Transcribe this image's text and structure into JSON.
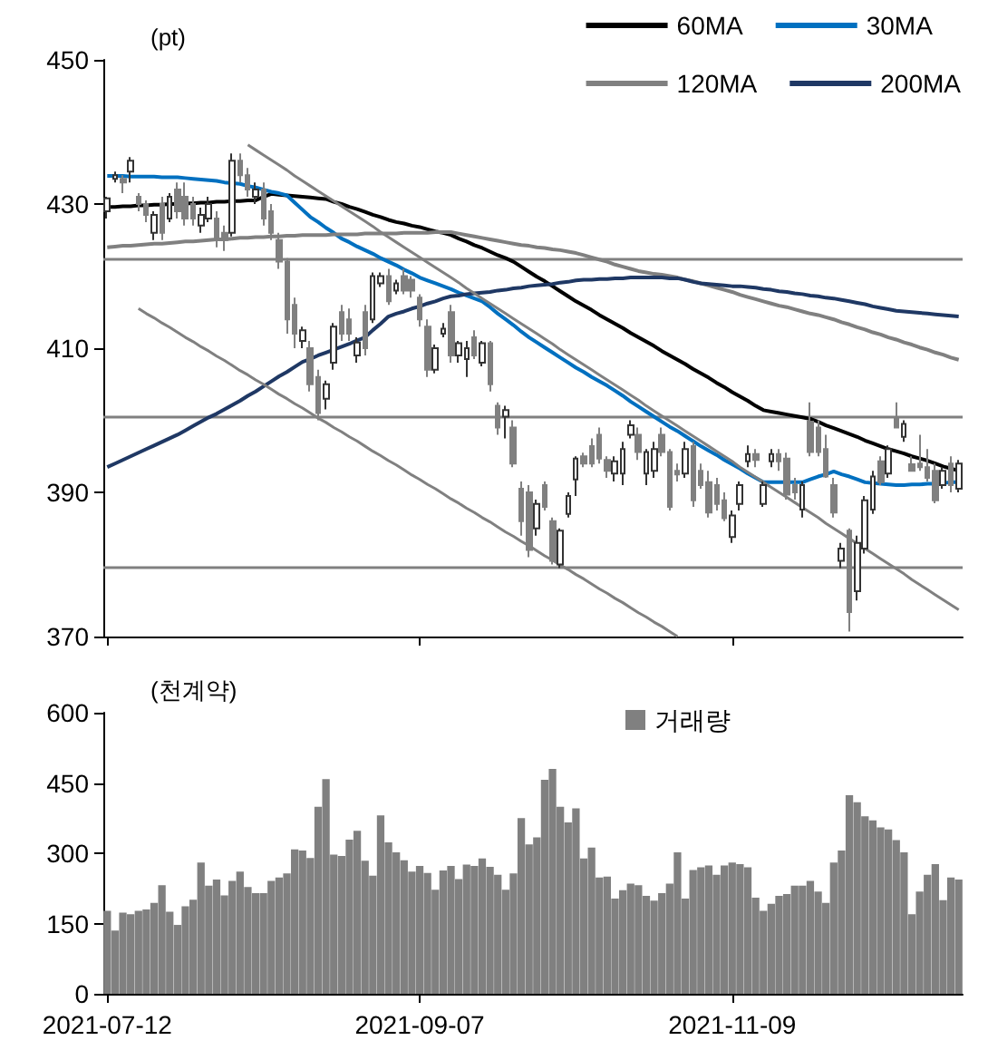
{
  "chart_data": [
    {
      "type": "candlestick",
      "ylabel": "(pt)",
      "legend": "top right",
      "tick_labels": "y",
      "colors": [
        "#ffffff",
        "#ffffff",
        "#808080",
        "#ffffff",
        "#808080",
        "#808080",
        "#ffffff",
        "#808080",
        "#ffffff",
        "#808080",
        "#808080",
        "#808080",
        "#ffffff",
        "#ffffff",
        "#808080",
        "#808080",
        "#ffffff",
        "#808080",
        "#808080",
        "#ffffff",
        "#808080",
        "#808080",
        "#808080",
        "#808080",
        "#808080",
        "#ffffff",
        "#808080",
        "#808080",
        "#ffffff",
        "#ffffff",
        "#808080",
        "#808080",
        "#ffffff",
        "#808080",
        "#ffffff",
        "#ffffff",
        "#808080",
        "#ffffff",
        "#808080",
        "#808080",
        "#808080",
        "#808080",
        "#ffffff",
        "#ffffff",
        "#808080",
        "#ffffff",
        "#ffffff",
        "#808080",
        "#ffffff",
        "#808080",
        "#808080",
        "#ffffff",
        "#808080",
        "#808080",
        "#808080",
        "#ffffff",
        "#808080",
        "#808080",
        "#ffffff",
        "#ffffff",
        "#ffffff",
        "#808080",
        "#808080",
        "#808080",
        "#808080",
        "#ffffff",
        "#ffffff",
        "#ffffff",
        "#808080",
        "#ffffff",
        "#ffffff",
        "#808080",
        "#808080",
        "#808080",
        "#ffffff",
        "#808080",
        "#808080",
        "#808080",
        "#808080",
        "#808080",
        "#ffffff",
        "#ffffff",
        "#ffffff",
        "#808080",
        "#ffffff",
        "#ffffff",
        "#808080",
        "#808080",
        "#808080",
        "#ffffff",
        "#808080",
        "#808080",
        "#808080",
        "#808080",
        "#ffffff",
        "#808080",
        "#ffffff",
        "#ffffff",
        "#ffffff",
        "#808080",
        "#ffffff",
        "#808080",
        "#ffffff",
        "#808080",
        "#808080",
        "#808080",
        "#808080",
        "#ffffff",
        "#808080",
        "#ffffff"
      ],
      "categories": [
        "2021-07-12",
        null,
        null,
        null,
        null,
        null,
        null,
        null,
        null,
        null,
        null,
        null,
        null,
        null,
        null,
        null,
        null,
        null,
        null,
        null,
        null,
        null,
        null,
        null,
        null,
        null,
        null,
        null,
        null,
        null,
        null,
        null,
        null,
        null,
        null,
        null,
        null,
        null,
        null,
        null,
        "2021-09-07",
        null,
        null,
        null,
        null,
        null,
        null,
        null,
        null,
        null,
        null,
        null,
        null,
        null,
        null,
        null,
        null,
        null,
        null,
        null,
        null,
        null,
        null,
        null,
        null,
        null,
        null,
        null,
        null,
        null,
        null,
        null,
        null,
        null,
        null,
        null,
        null,
        null,
        null,
        null,
        "2021-11-09",
        null,
        null,
        null,
        null,
        null,
        null,
        null,
        null,
        null,
        null,
        null,
        null,
        null,
        null,
        null,
        null,
        null,
        null,
        null,
        null,
        null,
        null,
        null,
        null,
        null,
        null,
        null,
        null,
        null
      ],
      "ylim": [
        370,
        450
      ],
      "yticks": [
        370,
        390,
        410,
        430,
        450
      ],
      "ohlc": [
        [
          429,
          431,
          428,
          430.8
        ],
        [
          433.5,
          434.5,
          433,
          434
        ],
        [
          433.5,
          434,
          431.5,
          433
        ],
        [
          434.5,
          436.5,
          433,
          436
        ],
        [
          431,
          431.5,
          429,
          430
        ],
        [
          430,
          430.5,
          427.5,
          428.5
        ],
        [
          426,
          429,
          425,
          428.5
        ],
        [
          430,
          431,
          425,
          426
        ],
        [
          428,
          431.5,
          427.5,
          431
        ],
        [
          432,
          433,
          428,
          429
        ],
        [
          431,
          433,
          427,
          428
        ],
        [
          430,
          431,
          427,
          428
        ],
        [
          427,
          429.5,
          426,
          428.5
        ],
        [
          428,
          431,
          427.5,
          430
        ],
        [
          428,
          429,
          424,
          425
        ],
        [
          426,
          427,
          423.5,
          425
        ],
        [
          426,
          437,
          425.5,
          436
        ],
        [
          436,
          437,
          433,
          434
        ],
        [
          434,
          435,
          431,
          432
        ],
        [
          431,
          433,
          430,
          432
        ],
        [
          432,
          433,
          427,
          428
        ],
        [
          429,
          430,
          425,
          426
        ],
        [
          425,
          426,
          421,
          422
        ],
        [
          422,
          422.5,
          412,
          414
        ],
        [
          416,
          417,
          410,
          412
        ],
        [
          411,
          413,
          410,
          412.5
        ],
        [
          410,
          411,
          404,
          405
        ],
        [
          406,
          407,
          400,
          401
        ],
        [
          403,
          405.5,
          401.5,
          405
        ],
        [
          408,
          413.5,
          407,
          413
        ],
        [
          415,
          416,
          411,
          412
        ],
        [
          414,
          415.5,
          411,
          412
        ],
        [
          409,
          411.5,
          408,
          410.8
        ],
        [
          415,
          416,
          409,
          410
        ],
        [
          414,
          420.5,
          413.5,
          420
        ],
        [
          419,
          420.5,
          418.5,
          420
        ],
        [
          420,
          421,
          416,
          416.5
        ],
        [
          418,
          419.5,
          417.5,
          419
        ],
        [
          420,
          421,
          417.5,
          418
        ],
        [
          419.5,
          420,
          417,
          418
        ],
        [
          417,
          417.5,
          413,
          414
        ],
        [
          413,
          414,
          406,
          407
        ],
        [
          407,
          410.5,
          406.5,
          410
        ],
        [
          412,
          413.5,
          411.5,
          412.7
        ],
        [
          415,
          416,
          408,
          409
        ],
        [
          409,
          411,
          408,
          410.7
        ],
        [
          408.5,
          411,
          406,
          410
        ],
        [
          411.5,
          412.5,
          408.5,
          409
        ],
        [
          408,
          411,
          407.5,
          410.7
        ],
        [
          410.7,
          411,
          404,
          405
        ],
        [
          402,
          402.5,
          398,
          399
        ],
        [
          400.5,
          402,
          397.5,
          401.4
        ],
        [
          399,
          400,
          393.5,
          394
        ],
        [
          390.5,
          391.5,
          384,
          386
        ],
        [
          390,
          391,
          381,
          382
        ],
        [
          385,
          389,
          384,
          388.4
        ],
        [
          391,
          391.5,
          387.5,
          388
        ],
        [
          386,
          386.5,
          380,
          380.5
        ],
        [
          380,
          385,
          379.5,
          384.7
        ],
        [
          387,
          390,
          386.5,
          389.5
        ],
        [
          391.8,
          395,
          389.5,
          394.7
        ],
        [
          395,
          395.5,
          393.5,
          394
        ],
        [
          396.4,
          397.5,
          393.5,
          394
        ],
        [
          398,
          399,
          394,
          394.7
        ],
        [
          394.5,
          395,
          392,
          393
        ],
        [
          392.6,
          395,
          391.5,
          394.3
        ],
        [
          392.6,
          397,
          391,
          396
        ],
        [
          398,
          400,
          397.5,
          399.3
        ],
        [
          398,
          399,
          394.5,
          395.6
        ],
        [
          392.6,
          396,
          391,
          395.6
        ],
        [
          393,
          397,
          392,
          396
        ],
        [
          398,
          399,
          395,
          395.6
        ],
        [
          395.6,
          396,
          387.5,
          388
        ],
        [
          393,
          394,
          391.5,
          392.5
        ],
        [
          392.6,
          397,
          392,
          396
        ],
        [
          396.4,
          397,
          388,
          388.9
        ],
        [
          393,
          394,
          390.5,
          391
        ],
        [
          391.4,
          393,
          386.5,
          387.2
        ],
        [
          391,
          392,
          387.5,
          388.4
        ],
        [
          388.9,
          390,
          386,
          386.4
        ],
        [
          383.8,
          387.5,
          383,
          386.8
        ],
        [
          388.4,
          391.5,
          387.5,
          391
        ],
        [
          394.3,
          396.5,
          393.5,
          395.3
        ],
        [
          395.3,
          396,
          393.5,
          394.5
        ],
        [
          388.4,
          391.5,
          388,
          391
        ],
        [
          394.3,
          396,
          393.5,
          395.3
        ],
        [
          395.3,
          396,
          393,
          394.3
        ],
        [
          394.7,
          395.5,
          389,
          389.7
        ],
        [
          391,
          392,
          389,
          390
        ],
        [
          387.6,
          391.5,
          386.5,
          391
        ],
        [
          399.8,
          402.5,
          395,
          395.6
        ],
        [
          399,
          400,
          395,
          395.6
        ],
        [
          396,
          398,
          392,
          392.2
        ],
        [
          391,
          392,
          386.5,
          387.2
        ],
        [
          380.5,
          383,
          379.5,
          382.2
        ],
        [
          384.7,
          385,
          370.7,
          373.4
        ],
        [
          376.3,
          384,
          375,
          383
        ],
        [
          382.2,
          389.5,
          381.5,
          388.9
        ],
        [
          387.6,
          393,
          387,
          392.2
        ],
        [
          394.3,
          395,
          391,
          391.4
        ],
        [
          392.6,
          396.5,
          392,
          396
        ],
        [
          400.2,
          402.5,
          399,
          399
        ],
        [
          397.7,
          400,
          397,
          399.5
        ],
        [
          393.9,
          395,
          393,
          393
        ],
        [
          394,
          398,
          393,
          393.5
        ],
        [
          393.5,
          396,
          391.5,
          392
        ],
        [
          393,
          394,
          388.5,
          388.9
        ],
        [
          391,
          393.5,
          390.5,
          393
        ],
        [
          394,
          395,
          390,
          391
        ],
        [
          390.5,
          394.5,
          390,
          394
        ]
      ],
      "series": [
        {
          "name": "60MA",
          "type": "line",
          "color": "#000000",
          "values": [
            429.6,
            429.6,
            429.7,
            429.7,
            429.8,
            429.8,
            429.9,
            429.9,
            430.0,
            430.0,
            430.1,
            430.1,
            430.2,
            430.2,
            430.3,
            430.3,
            430.4,
            430.4,
            430.5,
            430.5,
            431.0,
            431.4,
            431.3,
            431.2,
            431.1,
            431.0,
            430.9,
            430.8,
            430.7,
            430.3,
            430.0,
            429.6,
            429.3,
            428.9,
            428.5,
            428.2,
            427.8,
            427.5,
            427.3,
            427.0,
            426.8,
            426.5,
            426.2,
            426.0,
            425.7,
            425.2,
            424.8,
            424.3,
            423.9,
            423.4,
            422.9,
            422.5,
            422.0,
            421.3,
            420.6,
            419.9,
            419.3,
            418.6,
            417.9,
            417.2,
            416.5,
            415.9,
            415.3,
            414.6,
            414.0,
            413.4,
            412.8,
            412.1,
            411.5,
            410.9,
            410.3,
            409.6,
            409.0,
            408.4,
            407.8,
            407.1,
            406.5,
            405.9,
            405.2,
            404.6,
            403.9,
            403.3,
            402.7,
            402.0,
            401.4,
            401.2,
            401.0,
            400.8,
            400.6,
            400.4,
            400.2,
            399.8,
            399.3,
            398.9,
            398.5,
            398.1,
            397.7,
            397.2,
            396.8,
            396.4,
            396.0,
            395.7,
            395.4,
            395.0,
            394.7,
            394.4,
            394.0,
            393.6,
            393.3,
            393.0
          ]
        },
        {
          "name": "30MA",
          "type": "line",
          "color": "#0070c0",
          "values": [
            433.9,
            433.9,
            433.9,
            433.8,
            433.8,
            433.8,
            433.8,
            433.7,
            433.7,
            433.7,
            433.6,
            433.5,
            433.4,
            433.3,
            433.2,
            433.0,
            432.9,
            432.8,
            432.5,
            432.3,
            432.0,
            431.7,
            431.5,
            431.2,
            430.2,
            429.2,
            428.2,
            427.5,
            426.7,
            426.0,
            425.2,
            424.7,
            424.1,
            423.6,
            423.1,
            422.5,
            422.0,
            421.5,
            420.9,
            420.4,
            419.8,
            419.4,
            419.0,
            418.6,
            418.2,
            417.7,
            417.3,
            416.9,
            416.5,
            415.7,
            414.8,
            414.0,
            413.2,
            412.3,
            411.5,
            410.8,
            410.1,
            409.4,
            408.7,
            408.0,
            407.3,
            406.7,
            406.0,
            405.4,
            404.8,
            404.1,
            403.4,
            402.6,
            401.9,
            401.2,
            400.5,
            399.8,
            399.1,
            398.5,
            397.8,
            397.1,
            396.4,
            395.8,
            395.2,
            394.5,
            393.9,
            393.3,
            392.6,
            392.0,
            391.4,
            391.4,
            391.4,
            391.4,
            391.4,
            391.4,
            391.8,
            392.2,
            392.5,
            392.9,
            392.5,
            392.2,
            391.8,
            391.4,
            391.3,
            391.2,
            391.1,
            391.0,
            391.0,
            391.1,
            391.1,
            391.2,
            391.2,
            391.3,
            391.4,
            391.4
          ]
        },
        {
          "name": "120MA",
          "type": "line",
          "color": "#808080",
          "values": [
            424.0,
            424.1,
            424.2,
            424.2,
            424.3,
            424.4,
            424.5,
            424.5,
            424.6,
            424.7,
            424.8,
            424.8,
            424.9,
            425.0,
            425.1,
            425.1,
            425.2,
            425.3,
            425.3,
            425.4,
            425.4,
            425.5,
            425.5,
            425.6,
            425.6,
            425.7,
            425.7,
            425.7,
            425.7,
            425.8,
            425.8,
            425.8,
            425.8,
            425.9,
            425.9,
            425.9,
            425.9,
            425.9,
            426.0,
            426.0,
            426.0,
            426.0,
            426.1,
            426.1,
            426.1,
            425.9,
            425.7,
            425.5,
            425.3,
            425.1,
            424.9,
            424.7,
            424.5,
            424.3,
            424.2,
            424.0,
            423.9,
            423.7,
            423.6,
            423.4,
            423.2,
            422.9,
            422.6,
            422.3,
            422.0,
            421.6,
            421.3,
            421.0,
            420.7,
            420.5,
            420.3,
            420.2,
            420.0,
            419.8,
            419.5,
            419.3,
            419.0,
            418.7,
            418.4,
            418.1,
            417.8,
            417.4,
            417.1,
            416.8,
            416.5,
            416.2,
            415.9,
            415.7,
            415.4,
            415.1,
            414.8,
            414.6,
            414.3,
            414.0,
            413.6,
            413.3,
            412.9,
            412.6,
            412.2,
            411.9,
            411.5,
            411.2,
            410.8,
            410.5,
            410.1,
            409.8,
            409.4,
            409.1,
            408.7,
            408.4
          ]
        },
        {
          "name": "200MA",
          "type": "line",
          "color": "#1f3864",
          "values": [
            393.5,
            394.0,
            394.5,
            395.0,
            395.5,
            396.0,
            396.5,
            397.0,
            397.5,
            398.0,
            398.6,
            399.2,
            399.8,
            400.4,
            400.9,
            401.5,
            402.1,
            402.7,
            403.4,
            404.0,
            404.7,
            405.4,
            406.1,
            406.7,
            407.4,
            408.1,
            408.5,
            409.0,
            409.4,
            409.8,
            410.2,
            410.6,
            411.1,
            411.5,
            412.5,
            413.4,
            414.4,
            414.8,
            415.1,
            415.5,
            415.8,
            416.2,
            416.5,
            416.9,
            417.2,
            417.3,
            417.5,
            417.6,
            417.7,
            417.8,
            418.0,
            418.1,
            418.3,
            418.4,
            418.6,
            418.7,
            418.8,
            418.9,
            419.1,
            419.2,
            419.4,
            419.5,
            419.5,
            419.6,
            419.6,
            419.7,
            419.7,
            419.8,
            419.8,
            419.8,
            419.8,
            419.8,
            419.7,
            419.7,
            419.5,
            419.2,
            419.0,
            418.9,
            418.8,
            418.7,
            418.6,
            418.6,
            418.5,
            418.4,
            418.2,
            418.1,
            417.9,
            417.8,
            417.6,
            417.5,
            417.3,
            417.2,
            417.0,
            416.9,
            416.7,
            416.5,
            416.3,
            416.1,
            415.8,
            415.6,
            415.4,
            415.2,
            415.1,
            415.0,
            414.9,
            414.8,
            414.7,
            414.6,
            414.5,
            414.4
          ]
        },
        {
          "type": "line",
          "color": "#808080",
          "values": [
            null,
            null,
            null,
            null,
            null,
            null,
            null,
            null,
            null,
            null,
            null,
            null,
            null,
            null,
            null,
            null,
            null,
            null,
            438.2,
            437.5,
            436.8,
            436.1,
            435.4,
            434.7,
            433.9,
            433.2,
            432.5,
            431.8,
            431.1,
            430.4,
            429.7,
            429.0,
            428.3,
            427.6,
            426.9,
            426.1,
            425.4,
            424.7,
            424.0,
            423.3,
            422.6,
            421.9,
            421.2,
            420.5,
            419.8,
            419.1,
            418.3,
            417.6,
            416.9,
            416.2,
            415.5,
            414.8,
            414.1,
            413.4,
            412.7,
            412.0,
            411.3,
            410.6,
            409.8,
            409.1,
            408.4,
            407.7,
            407.0,
            406.3,
            405.6,
            404.9,
            404.2,
            403.5,
            402.8,
            402.0,
            401.3,
            400.6,
            399.9,
            399.2,
            398.5,
            397.8,
            397.1,
            396.4,
            395.7,
            395.0,
            394.3,
            393.5,
            392.8,
            392.1,
            391.4,
            390.7,
            390.0,
            389.3,
            388.6,
            387.9,
            387.2,
            386.5,
            385.7,
            385.0,
            384.3,
            383.6,
            382.9,
            382.2,
            381.5,
            380.8,
            380.1,
            379.4,
            378.7,
            377.9,
            377.2,
            376.5,
            375.8,
            375.1,
            374.4,
            373.7
          ]
        },
        {
          "type": "line",
          "color": "#808080",
          "values": [
            null,
            null,
            null,
            null,
            415.5,
            414.8,
            414.2,
            413.5,
            412.9,
            412.2,
            411.5,
            410.9,
            410.2,
            409.6,
            408.9,
            408.3,
            407.6,
            406.9,
            406.3,
            405.6,
            405.0,
            404.3,
            403.6,
            403.0,
            402.3,
            401.7,
            401.0,
            400.3,
            399.7,
            399.0,
            398.4,
            397.7,
            397.1,
            396.4,
            395.7,
            395.1,
            394.4,
            393.8,
            393.1,
            392.4,
            391.8,
            391.1,
            390.5,
            389.8,
            389.1,
            388.5,
            387.8,
            387.2,
            386.5,
            385.9,
            385.2,
            384.5,
            383.9,
            383.2,
            382.6,
            381.9,
            381.2,
            380.6,
            379.9,
            379.3,
            378.6,
            378.0,
            377.3,
            376.6,
            376.0,
            375.3,
            374.7,
            374.0,
            373.3,
            372.7,
            372.0,
            371.4,
            370.7,
            370.0,
            null,
            null,
            null,
            null,
            null,
            null,
            null,
            null,
            null,
            null,
            null,
            null,
            null,
            null,
            null,
            null,
            null,
            null,
            null,
            null,
            null,
            null,
            null,
            null,
            null,
            null,
            null,
            null,
            null,
            null,
            null,
            null,
            null,
            null,
            null,
            null
          ]
        }
      ],
      "ref_lines": [
        {
          "axis": "y",
          "value": 422.5,
          "color": "#808080"
        },
        {
          "axis": "y",
          "value": 400.5,
          "color": "#808080"
        },
        {
          "axis": "y",
          "value": 379.5,
          "color": "#808080"
        }
      ]
    },
    {
      "type": "bar",
      "ylabel": "(천계약)",
      "legend": "top",
      "categories": [
        "2021-07-12",
        null,
        null,
        null,
        null,
        null,
        null,
        null,
        null,
        null,
        null,
        null,
        null,
        null,
        null,
        null,
        null,
        null,
        null,
        null,
        null,
        null,
        null,
        null,
        null,
        null,
        null,
        null,
        null,
        null,
        null,
        null,
        null,
        null,
        null,
        null,
        null,
        null,
        null,
        null,
        "2021-09-07",
        null,
        null,
        null,
        null,
        null,
        null,
        null,
        null,
        null,
        null,
        null,
        null,
        null,
        null,
        null,
        null,
        null,
        null,
        null,
        null,
        null,
        null,
        null,
        null,
        null,
        null,
        null,
        null,
        null,
        null,
        null,
        null,
        null,
        null,
        null,
        null,
        null,
        null,
        null,
        "2021-11-09",
        null,
        null,
        null,
        null,
        null,
        null,
        null,
        null,
        null,
        null,
        null,
        null,
        null,
        null,
        null,
        null,
        null,
        null,
        null,
        null,
        null,
        null,
        null,
        null,
        null,
        null,
        null,
        null,
        null
      ],
      "ylim": [
        0,
        600
      ],
      "yticks": [
        0,
        150,
        300,
        450,
        600
      ],
      "series": [
        {
          "name": "거래량",
          "color": "#808080",
          "values": [
            177,
            135,
            173,
            170,
            177,
            180,
            194,
            232,
            175,
            147,
            187,
            201,
            280,
            231,
            244,
            210,
            241,
            261,
            228,
            215,
            215,
            241,
            248,
            257,
            308,
            306,
            290,
            399,
            458,
            297,
            294,
            329,
            348,
            284,
            252,
            381,
            323,
            302,
            285,
            261,
            273,
            258,
            222,
            263,
            273,
            245,
            276,
            273,
            289,
            271,
            254,
            222,
            257,
            375,
            319,
            334,
            457,
            480,
            399,
            366,
            396,
            289,
            312,
            248,
            250,
            203,
            221,
            235,
            232,
            209,
            199,
            215,
            235,
            302,
            203,
            264,
            270,
            274,
            254,
            274,
            280,
            277,
            270,
            205,
            177,
            192,
            209,
            213,
            231,
            231,
            241,
            218,
            194,
            280,
            306,
            424,
            409,
            379,
            370,
            355,
            351,
            328,
            302,
            170,
            218,
            254,
            277,
            200,
            248,
            244
          ]
        }
      ]
    }
  ]
}
